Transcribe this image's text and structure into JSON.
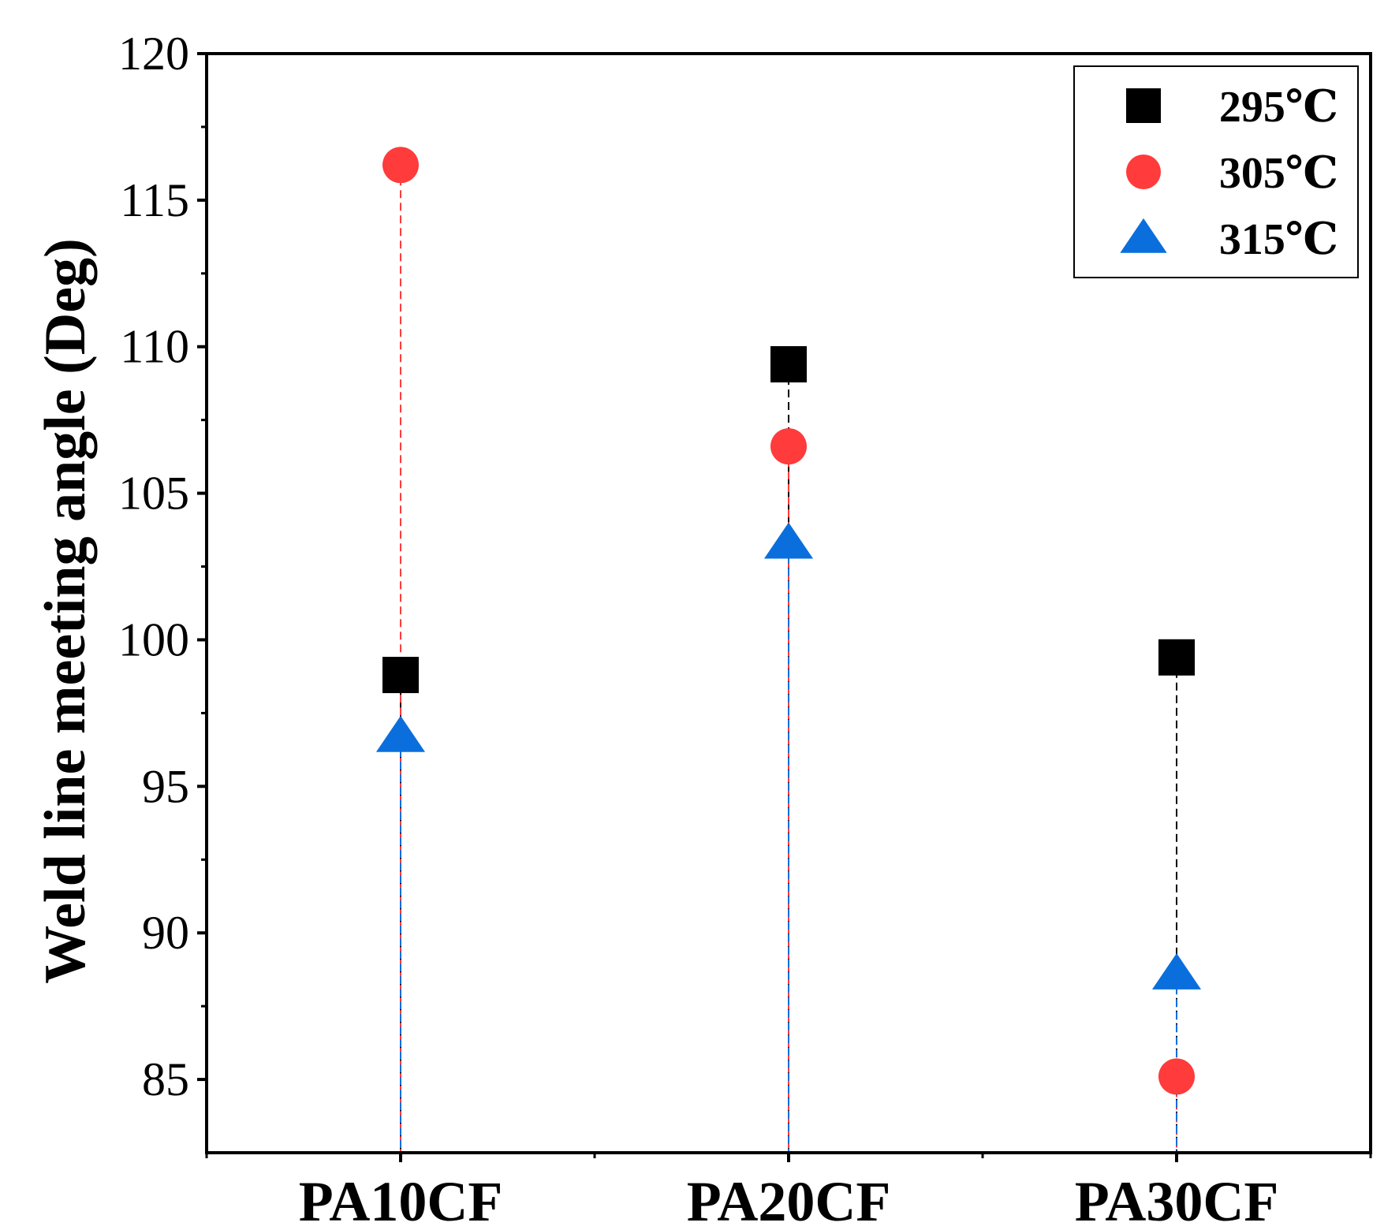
{
  "chart_data": {
    "type": "scatter",
    "title": "",
    "xlabel": "",
    "ylabel": "Weld line meeting angle (Deg)",
    "categories": [
      "PA10CF",
      "PA20CF",
      "PA30CF"
    ],
    "ylim": [
      82.5,
      120
    ],
    "yticks": [
      85,
      90,
      95,
      100,
      105,
      110,
      115,
      120
    ],
    "grid": false,
    "legend_position": "top-right",
    "drop_lines": "dashed",
    "series": [
      {
        "name": "295℃",
        "marker": "square",
        "color": "#000000",
        "values": [
          98.8,
          109.4,
          99.4
        ]
      },
      {
        "name": "305℃",
        "marker": "circle",
        "color": "#ff3b3b",
        "values": [
          116.2,
          106.6,
          85.1
        ]
      },
      {
        "name": "315℃",
        "marker": "triangle",
        "color": "#0a6fdc",
        "values": [
          96.7,
          103.3,
          88.6
        ]
      }
    ]
  }
}
